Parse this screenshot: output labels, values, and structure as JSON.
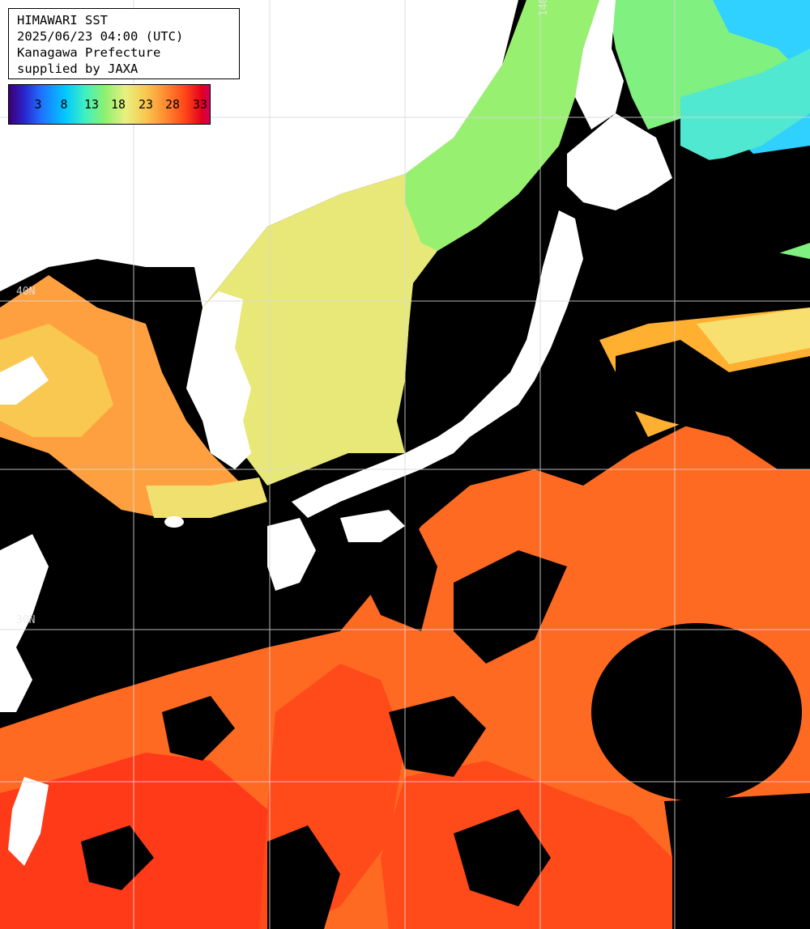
{
  "info": {
    "title": "HIMAWARI SST",
    "datetime": "2025/06/23 04:00 (UTC)",
    "region": "Kanagawa Prefecture",
    "credit": "supplied by JAXA"
  },
  "colorbar": {
    "ticks": [
      "3",
      "8",
      "13",
      "18",
      "23",
      "28",
      "33"
    ],
    "colors": [
      "#3a0070",
      "#2070ff",
      "#00c8ff",
      "#90f070",
      "#e8f080",
      "#ff8a30",
      "#e40020",
      "#d0005a"
    ]
  },
  "grid_labels": {
    "lat_40": "40N",
    "lat_30": "30N",
    "lon_140": "140"
  },
  "palette": {
    "land": "#ffffff",
    "cloud": "#000000",
    "cold_sea": "#30d0ff",
    "green_sea": "#90f070",
    "yellow_sea": "#f0e070",
    "orange_sea": "#ff7a28",
    "red_sea": "#ff3a18",
    "grid": "#d8d8d8"
  }
}
